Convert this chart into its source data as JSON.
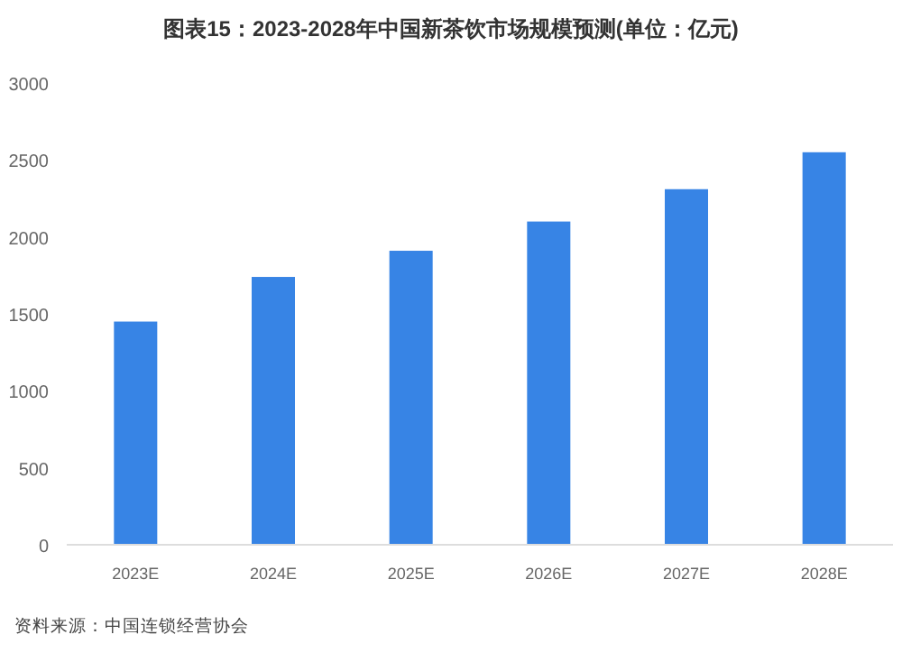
{
  "chart_data": {
    "type": "bar",
    "title": "图表15：2023-2028年中国新茶饮市场规模预测(单位：亿元)",
    "categories": [
      "2023E",
      "2024E",
      "2025E",
      "2026E",
      "2027E",
      "2028E"
    ],
    "series": [
      {
        "color": "#3784e5",
        "values": [
          1450,
          1740,
          1910,
          2100,
          2310,
          2550
        ]
      }
    ],
    "ylim": [
      0,
      3000
    ],
    "yticks": [
      0,
      500,
      1000,
      1500,
      2000,
      2500,
      3000
    ],
    "grid": false,
    "annotations": [
      "资料来源：中国连锁经营协会"
    ]
  }
}
